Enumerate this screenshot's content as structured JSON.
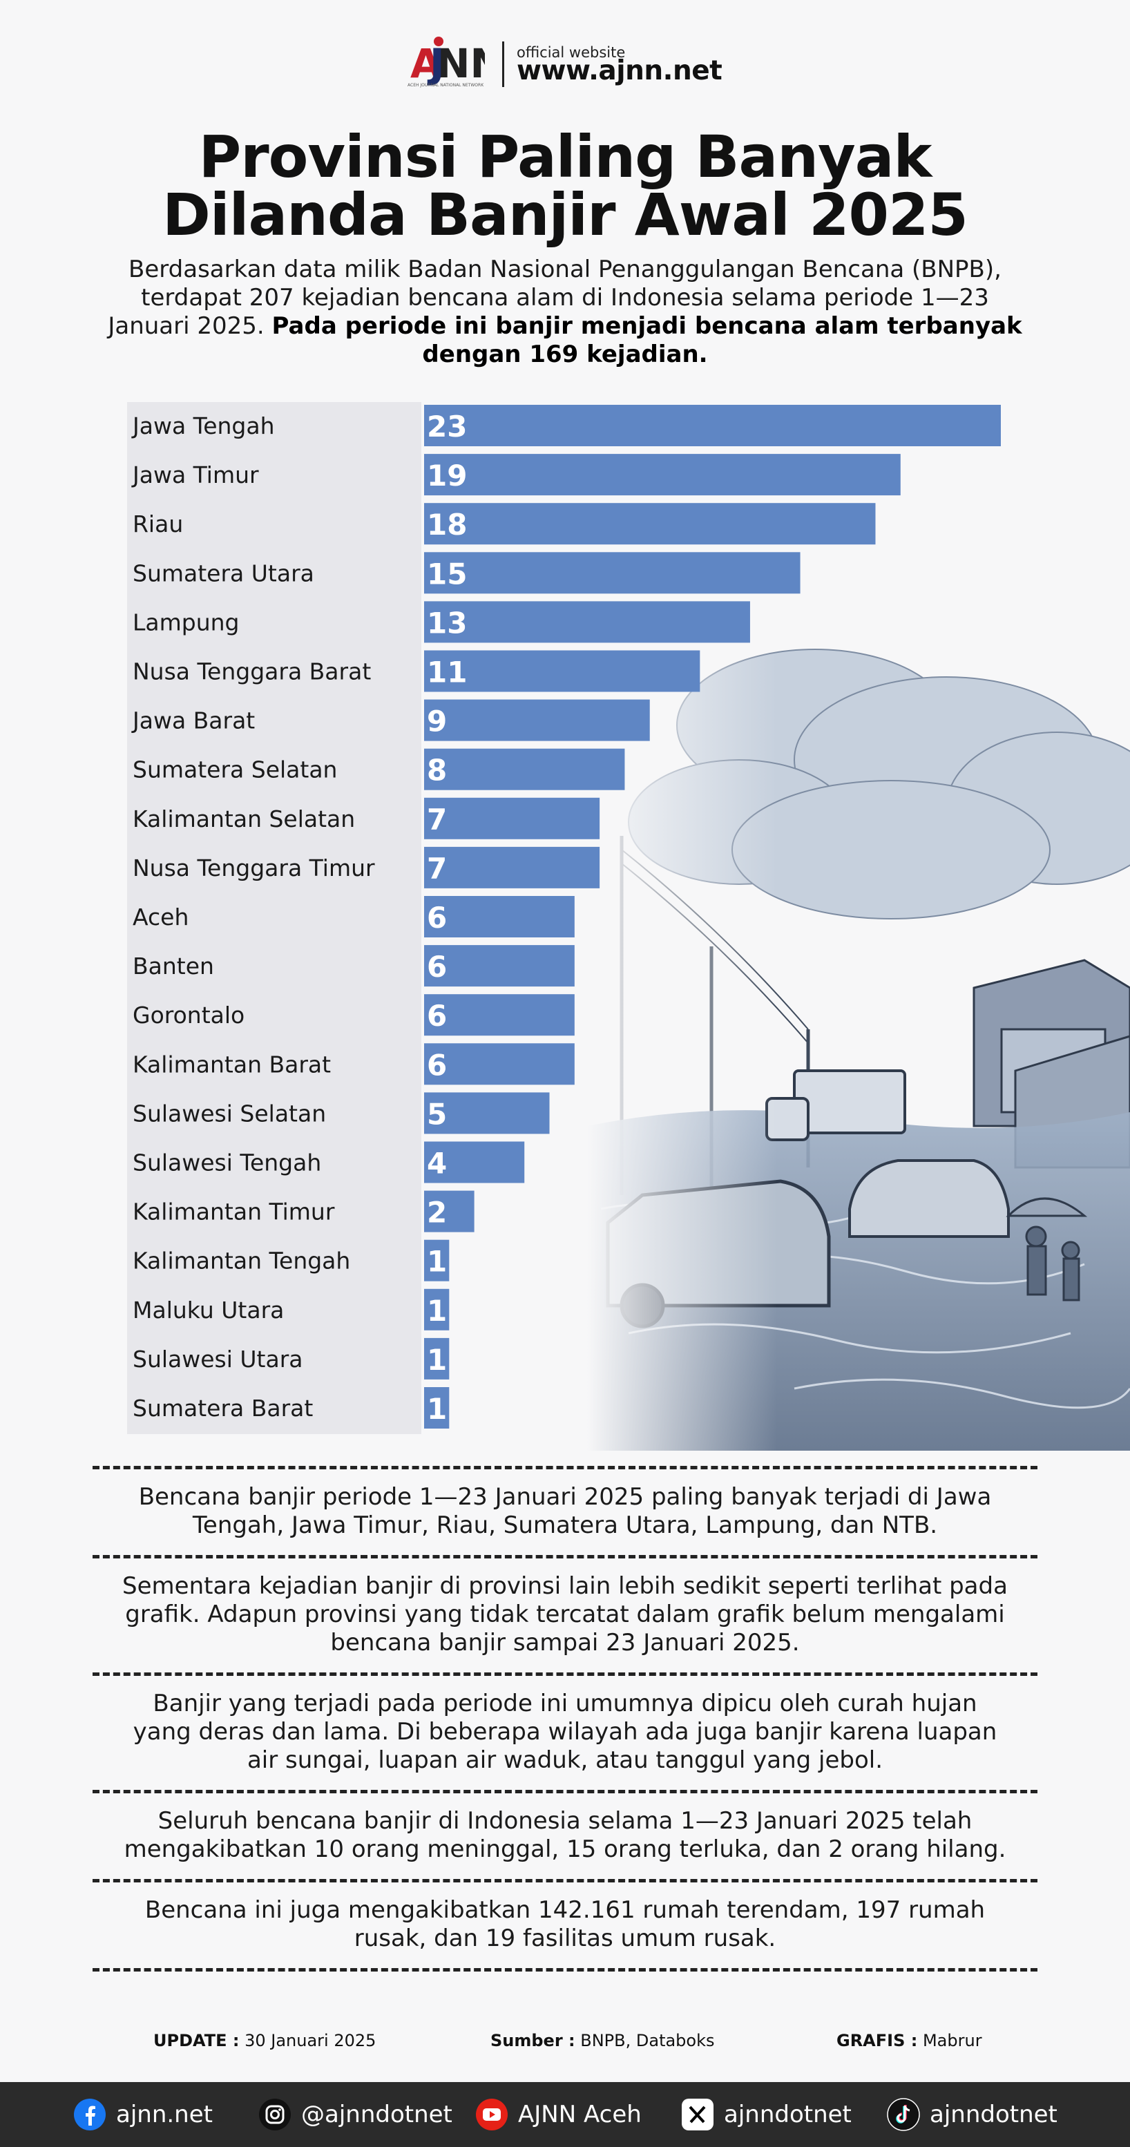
{
  "header": {
    "logo_text": "AJNN",
    "logo_subtitle": "ACEH JOURNAL NATIONAL NETWORK",
    "official_label": "official website",
    "website": "www.ajnn.net"
  },
  "title_lines": [
    "Provinsi Paling Banyak",
    "Dilanda Banjir Awal 2025"
  ],
  "intro": {
    "text": "Berdasarkan data milik Badan Nasional Penanggulangan Bencana (BNPB), terdapat 207 kejadian bencana alam di Indonesia selama periode 1—23 Januari 2025.",
    "bold": "Pada periode ini banjir menjadi bencana alam terbanyak dengan 169 kejadian."
  },
  "chart_data": {
    "type": "bar",
    "orientation": "horizontal",
    "categories": [
      "Jawa Tengah",
      "Jawa Timur",
      "Riau",
      "Sumatera Utara",
      "Lampung",
      "Nusa Tenggara Barat",
      "Jawa Barat",
      "Sumatera Selatan",
      "Kalimantan Selatan",
      "Nusa Tenggara Timur",
      "Aceh",
      "Banten",
      "Gorontalo",
      "Kalimantan Barat",
      "Sulawesi Selatan",
      "Sulawesi Tengah",
      "Kalimantan Timur",
      "Kalimantan Tengah",
      "Maluku Utara",
      "Sulawesi Utara",
      "Sumatera Barat"
    ],
    "values": [
      23,
      19,
      18,
      15,
      13,
      11,
      9,
      8,
      7,
      7,
      6,
      6,
      6,
      6,
      5,
      4,
      2,
      1,
      1,
      1,
      1
    ],
    "bar_color": "#5f86c4",
    "data_labels": true,
    "grid": false,
    "legend": "none"
  },
  "notes": [
    "Bencana banjir periode 1—23 Januari 2025 paling banyak terjadi di Jawa Tengah, Jawa Timur, Riau, Sumatera Utara, Lampung, dan NTB.",
    "Sementara kejadian banjir di provinsi lain lebih sedikit seperti terlihat pada grafik. Adapun provinsi yang tidak tercatat dalam grafik belum mengalami bencana banjir sampai 23 Januari 2025.",
    "Banjir yang terjadi pada periode ini umumnya dipicu oleh curah hujan yang deras dan lama. Di beberapa wilayah ada juga banjir karena luapan air sungai, luapan air waduk, atau tanggul yang jebol.",
    "Seluruh bencana banjir di Indonesia selama 1—23 Januari 2025 telah mengakibatkan 10 orang meninggal, 15 orang terluka, dan 2 orang hilang.",
    "Bencana ini juga mengakibatkan 142.161 rumah terendam, 197 rumah rusak, dan 19 fasilitas umum rusak."
  ],
  "credits": {
    "update_label": "UPDATE :",
    "update_value": "30 Januari 2025",
    "source_label": "Sumber :",
    "source_value": "BNPB, Databoks",
    "graphic_label": "GRAFIS :",
    "graphic_value": "Mabrur"
  },
  "social": [
    {
      "icon": "facebook-icon",
      "label": "ajnn.net"
    },
    {
      "icon": "instagram-icon",
      "label": "@ajnndotnet"
    },
    {
      "icon": "youtube-icon",
      "label": "AJNN Aceh"
    },
    {
      "icon": "x-icon",
      "label": "ajnndotnet"
    },
    {
      "icon": "tiktok-icon",
      "label": "ajnndotnet"
    }
  ],
  "colors": {
    "bar": "#5f86c4",
    "label_panel": "#e7e7eb",
    "footer": "#2b2b2b"
  }
}
